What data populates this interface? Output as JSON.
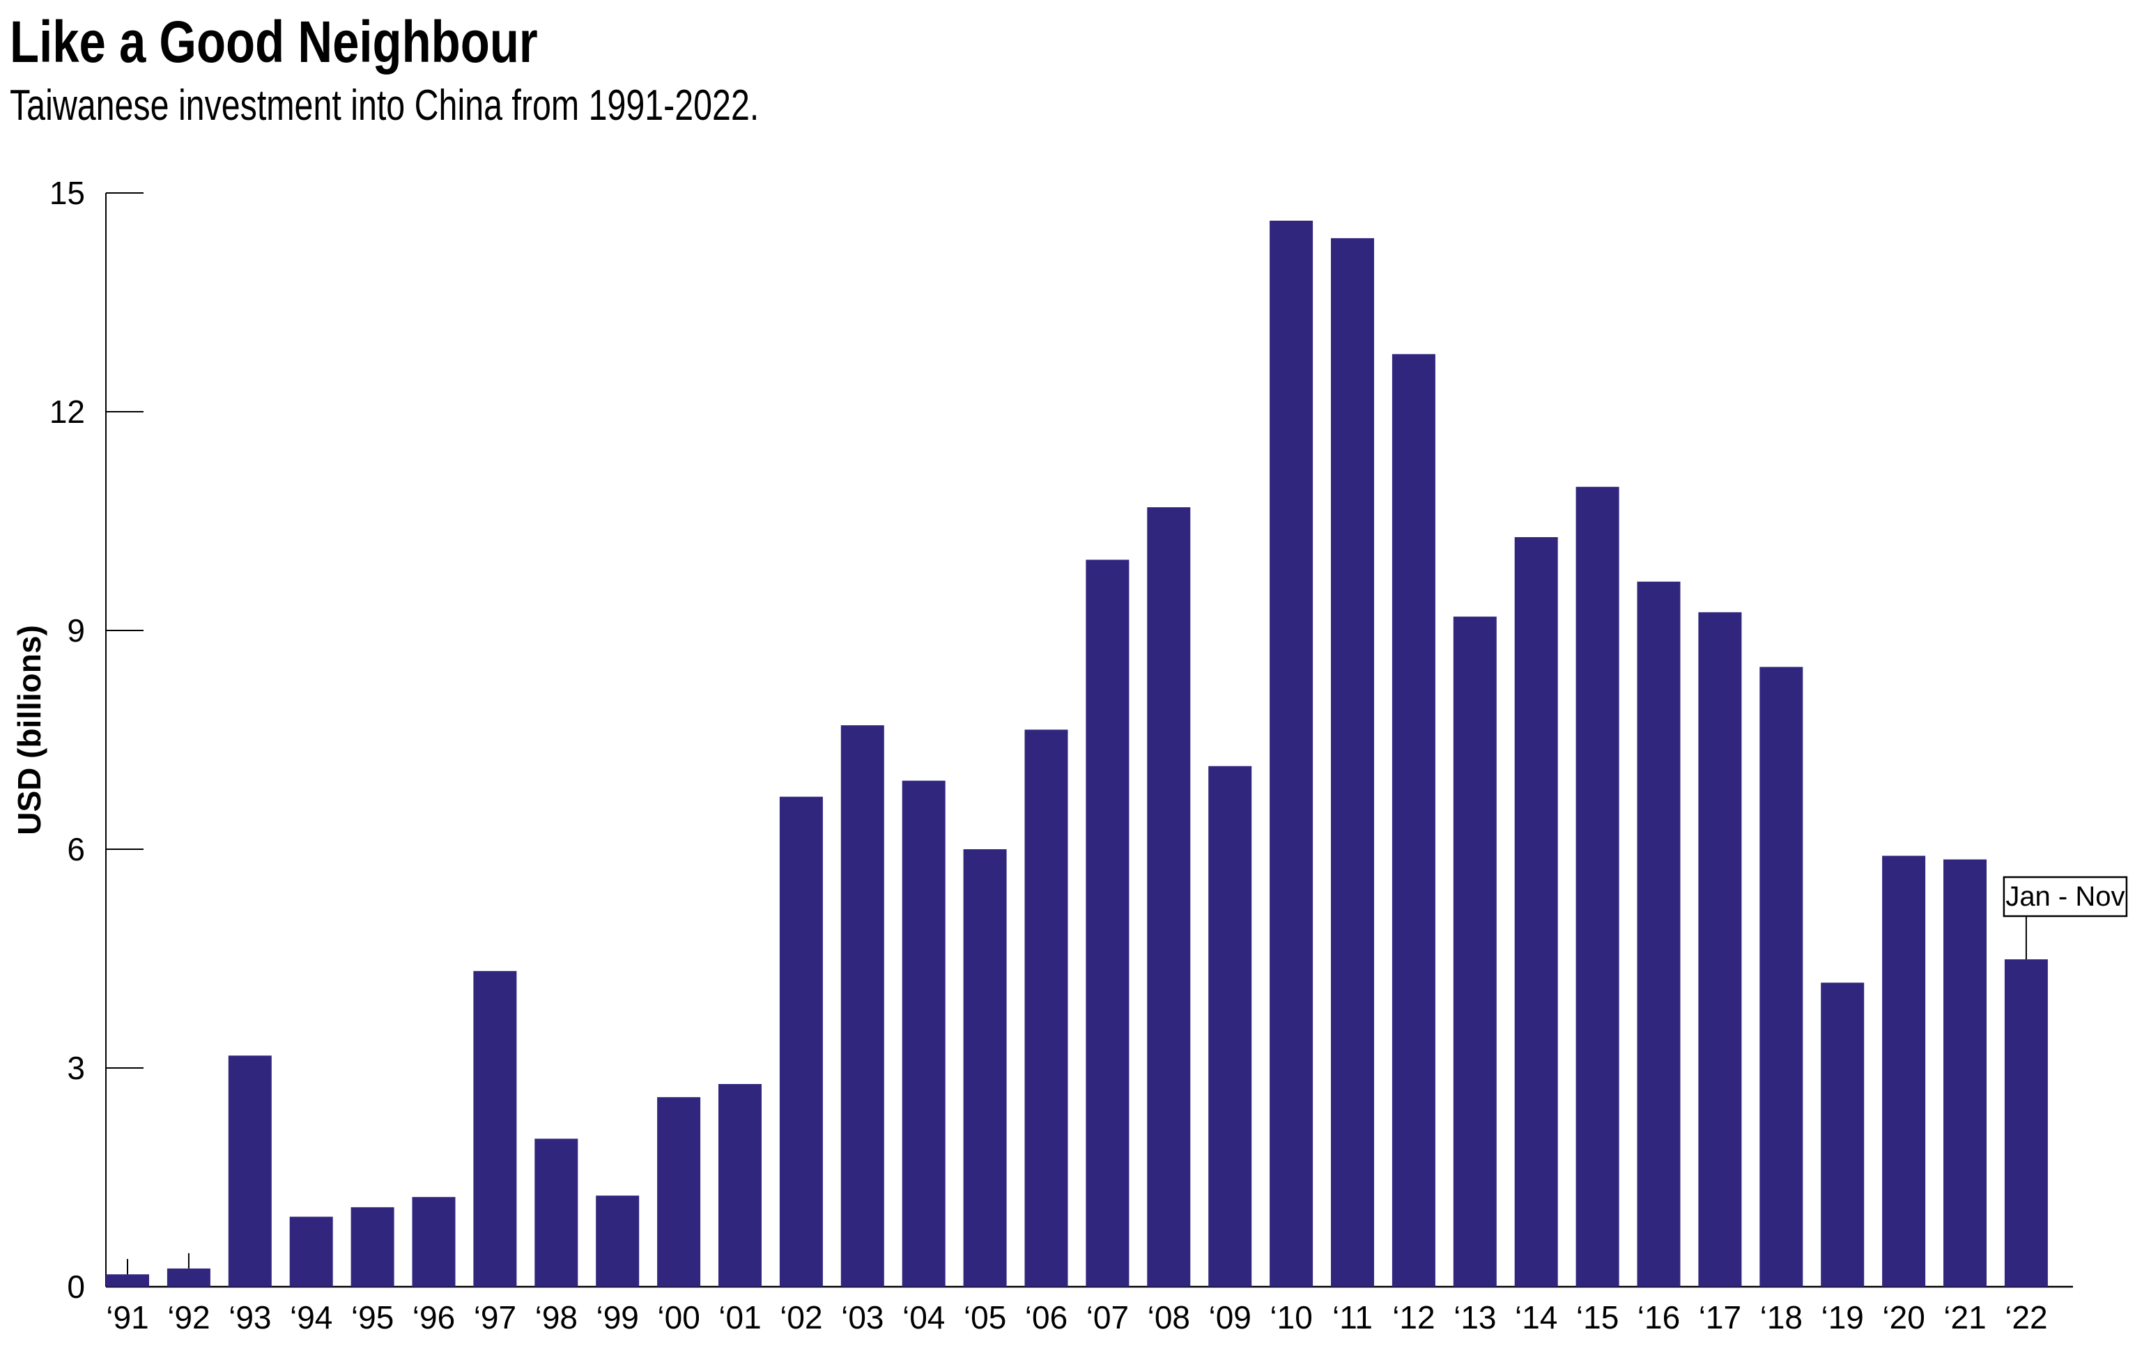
{
  "chart_data": {
    "type": "bar",
    "title": "Like a Good Neighbour",
    "subtitle": "Taiwanese investment into China from 1991-2022.",
    "xlabel": "",
    "ylabel": "USD (billions)",
    "ylim": [
      0,
      15
    ],
    "yticks": [
      0,
      3,
      6,
      9,
      12,
      15
    ],
    "grid": false,
    "categories": [
      "‘91",
      "‘92",
      "‘93",
      "‘94",
      "‘95",
      "‘96",
      "‘97",
      "‘98",
      "‘99",
      "‘00",
      "‘01",
      "‘02",
      "‘03",
      "‘04",
      "‘05",
      "‘06",
      "‘07",
      "‘08",
      "‘09",
      "‘10",
      "‘11",
      "‘12",
      "‘13",
      "‘14",
      "‘15",
      "‘16",
      "‘17",
      "‘18",
      "‘19",
      "‘20",
      "‘21",
      "‘22"
    ],
    "values": [
      0.17,
      0.25,
      3.17,
      0.96,
      1.09,
      1.23,
      4.33,
      2.03,
      1.25,
      2.6,
      2.78,
      6.72,
      7.7,
      6.94,
      6.0,
      7.64,
      9.97,
      10.69,
      7.14,
      14.62,
      14.38,
      12.79,
      9.19,
      10.28,
      10.97,
      9.67,
      9.25,
      8.5,
      4.17,
      5.91,
      5.86,
      4.49
    ],
    "bar_color": "#31267e",
    "annotations": [
      {
        "category": "‘22",
        "text": "Jan - Nov"
      }
    ]
  }
}
